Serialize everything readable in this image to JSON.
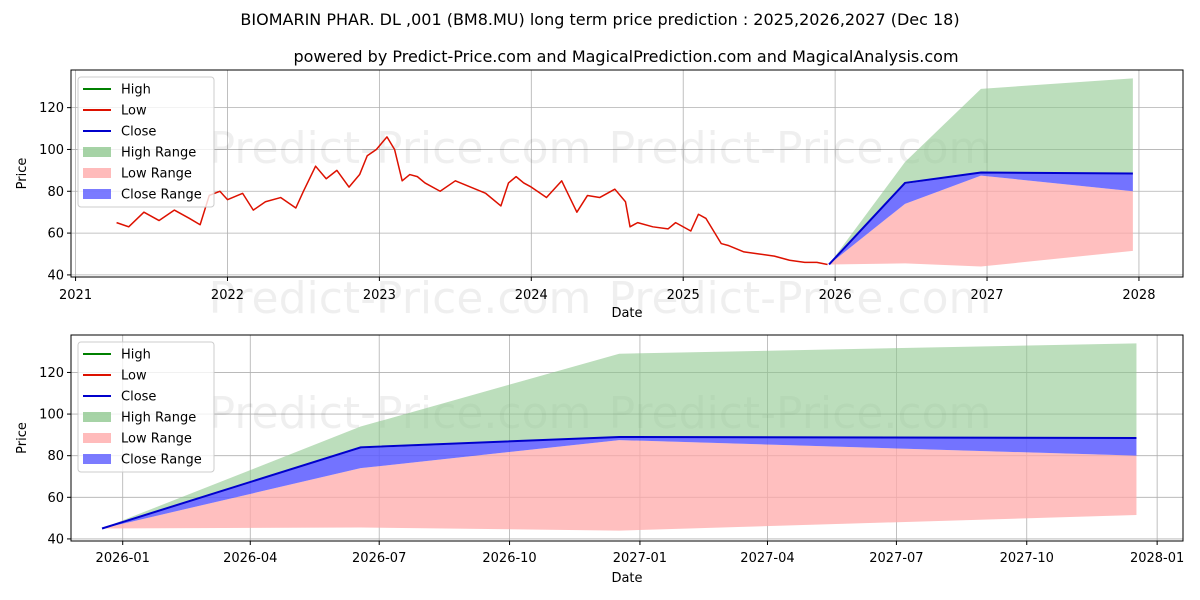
{
  "title": "BIOMARIN PHAR. DL ,001 (BM8.MU) long term price prediction : 2025,2026,2027 (Dec 18)",
  "subtitle": "powered by Predict-Price.com and MagicalPrediction.com and MagicalAnalysis.com",
  "watermark": "Predict-Price.com",
  "colors": {
    "high": "#008000",
    "low": "#dd1100",
    "close": "#0000cc",
    "high_range": "#90c890",
    "low_range": "#ffaaaa",
    "close_range": "#5a5aff"
  },
  "legend": [
    "High",
    "Low",
    "Close",
    "High Range",
    "Low Range",
    "Close Range"
  ],
  "chart_data": [
    {
      "type": "line",
      "title": "",
      "xlabel": "Date",
      "ylabel": "Price",
      "xlim": [
        2020.97,
        2028.29
      ],
      "ylim": [
        39,
        138
      ],
      "xticks": [
        2021,
        2022,
        2023,
        2024,
        2025,
        2026,
        2027,
        2028
      ],
      "xtick_labels": [
        "2021",
        "2022",
        "2023",
        "2024",
        "2025",
        "2026",
        "2027",
        "2028"
      ],
      "yticks": [
        40,
        60,
        80,
        100,
        120
      ],
      "ytick_labels": [
        "40",
        "60",
        "80",
        "100",
        "120"
      ],
      "legend_position": "upper-left",
      "history": {
        "name": "Low",
        "x": [
          2021.27,
          2021.35,
          2021.45,
          2021.55,
          2021.65,
          2021.75,
          2021.82,
          2021.88,
          2021.95,
          2022.0,
          2022.1,
          2022.17,
          2022.25,
          2022.35,
          2022.45,
          2022.5,
          2022.58,
          2022.65,
          2022.72,
          2022.8,
          2022.87,
          2022.92,
          2022.98,
          2023.05,
          2023.1,
          2023.15,
          2023.2,
          2023.25,
          2023.3,
          2023.4,
          2023.5,
          2023.6,
          2023.7,
          2023.8,
          2023.85,
          2023.9,
          2023.95,
          2024.0,
          2024.1,
          2024.2,
          2024.3,
          2024.37,
          2024.45,
          2024.55,
          2024.62,
          2024.65,
          2024.7,
          2024.8,
          2024.9,
          2024.95,
          2025.05,
          2025.1,
          2025.15,
          2025.25,
          2025.3,
          2025.4,
          2025.5,
          2025.6,
          2025.7,
          2025.8,
          2025.88,
          2025.95
        ],
        "values": [
          65,
          63,
          70,
          66,
          71,
          67,
          64,
          78,
          80,
          76,
          79,
          71,
          75,
          77,
          72,
          80,
          92,
          86,
          90,
          82,
          88,
          97,
          100,
          106,
          100,
          85,
          88,
          87,
          84,
          80,
          85,
          82,
          79,
          73,
          84,
          87,
          84,
          82,
          77,
          85,
          70,
          78,
          77,
          81,
          75,
          63,
          65,
          63,
          62,
          65,
          61,
          69,
          67,
          55,
          54,
          51,
          50,
          49,
          47,
          46,
          46,
          45
        ]
      },
      "forecast": {
        "x": [
          2025.96,
          2026.46,
          2026.96,
          2027.96
        ],
        "high_range_upper": [
          45,
          94,
          129,
          134
        ],
        "low_range_lower": [
          45,
          45.5,
          44,
          51.5
        ],
        "close_range_upper": [
          45,
          83.5,
          89,
          88.5
        ],
        "close_range_lower": [
          45,
          74,
          87.5,
          80
        ],
        "close": [
          45,
          84,
          89,
          88.5
        ]
      }
    },
    {
      "type": "line",
      "title": "",
      "xlabel": "Date",
      "ylabel": "Price",
      "xlim": [
        2025.9,
        2028.05
      ],
      "ylim": [
        39,
        138
      ],
      "xticks": [
        2026.0,
        2026.2466,
        2026.4959,
        2026.7479,
        2027.0,
        2027.2466,
        2027.4959,
        2027.7479,
        2028.0
      ],
      "xtick_labels": [
        "2026-01",
        "2026-04",
        "2026-07",
        "2026-10",
        "2027-01",
        "2027-04",
        "2027-07",
        "2027-10",
        "2028-01"
      ],
      "yticks": [
        40,
        60,
        80,
        100,
        120
      ],
      "ytick_labels": [
        "40",
        "60",
        "80",
        "100",
        "120"
      ],
      "legend_position": "upper-left",
      "forecast": {
        "x": [
          2025.96,
          2026.46,
          2026.96,
          2027.96
        ],
        "high_range_upper": [
          45,
          94,
          129,
          134
        ],
        "low_range_lower": [
          45,
          45.5,
          44,
          51.5
        ],
        "close_range_upper": [
          45,
          83.5,
          89,
          88.5
        ],
        "close_range_lower": [
          45,
          74,
          87.5,
          80
        ],
        "close": [
          45,
          84,
          89,
          88.5
        ]
      }
    }
  ]
}
